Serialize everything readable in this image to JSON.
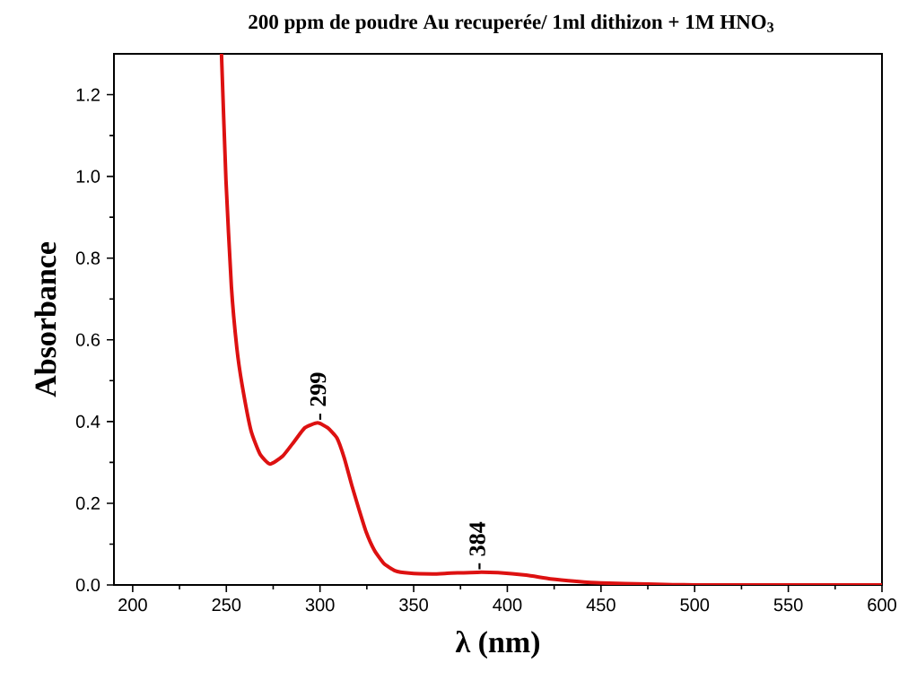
{
  "chart_data": {
    "type": "line",
    "title": "200 ppm de poudre Au recuperée/ 1ml dithizon + 1M HNO$_{3}$",
    "xlabel": "λ (nm)",
    "ylabel": "Absorbance",
    "x": [
      247.4,
      249.8,
      252.7,
      255.6,
      258.4,
      263.2,
      268,
      273.3,
      280,
      286.2,
      292,
      298.7,
      304,
      309,
      313,
      316.9,
      320.8,
      324.6,
      329,
      334,
      340,
      347.5,
      360,
      370,
      384,
      395,
      410,
      423,
      437,
      450,
      475,
      500,
      550,
      600
    ],
    "series": [
      {
        "color": "#dd1111",
        "values": [
          1.3,
          0.99,
          0.73,
          0.58,
          0.49,
          0.377,
          0.32,
          0.296,
          0.315,
          0.351,
          0.385,
          0.397,
          0.385,
          0.36,
          0.31,
          0.245,
          0.185,
          0.13,
          0.085,
          0.053,
          0.035,
          0.029,
          0.027,
          0.029,
          0.031,
          0.03,
          0.024,
          0.015,
          0.009,
          0.005,
          0.002,
          0.0,
          0.0,
          0.0
        ]
      }
    ],
    "xlim": [
      190,
      600
    ],
    "ylim": [
      0,
      1.3
    ],
    "xticks": [
      200,
      250,
      300,
      350,
      400,
      450,
      500,
      550,
      600
    ],
    "yticks": [
      {
        "value": 0,
        "label": "0.0"
      },
      {
        "value": 0.2,
        "label": "0.2"
      },
      {
        "value": 0.4,
        "label": "0.4"
      },
      {
        "value": 0.6,
        "label": "0.6"
      },
      {
        "value": 0.8,
        "label": "0.8"
      },
      {
        "value": 1.0,
        "label": "1.0"
      },
      {
        "value": 1.2,
        "label": "1.2"
      }
    ],
    "grid": false,
    "marker": "none",
    "line_style": "solid",
    "annotations": [
      {
        "text": "- 299",
        "x": 299,
        "y": 0.397
      },
      {
        "text": "- 384",
        "x": 384,
        "y": 0.031
      }
    ]
  }
}
